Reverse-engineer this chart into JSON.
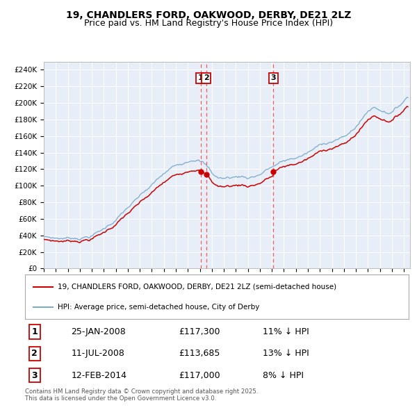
{
  "title": "19, CHANDLERS FORD, OAKWOOD, DERBY, DE21 2LZ",
  "subtitle": "Price paid vs. HM Land Registry's House Price Index (HPI)",
  "ylim": [
    0,
    250000
  ],
  "yticks": [
    0,
    20000,
    40000,
    60000,
    80000,
    100000,
    120000,
    140000,
    160000,
    180000,
    200000,
    220000,
    240000
  ],
  "plot_bg": "#e8eef8",
  "hpi_color": "#7aaad0",
  "price_color": "#cc0000",
  "vline_color": "#ff5555",
  "sale_dates_float": [
    2008.069,
    2008.527,
    2014.118
  ],
  "sale_prices": [
    117300,
    113685,
    117000
  ],
  "sale_labels": [
    "1",
    "2",
    "3"
  ],
  "hpi_knots_x": [
    1995.0,
    1996.0,
    1997.0,
    1998.0,
    1999.0,
    2000.0,
    2001.0,
    2002.0,
    2003.0,
    2004.0,
    2004.75,
    2005.5,
    2006.5,
    2007.25,
    2007.75,
    2008.25,
    2008.75,
    2009.0,
    2009.5,
    2010.0,
    2010.5,
    2011.0,
    2011.5,
    2012.0,
    2012.5,
    2013.0,
    2013.5,
    2014.0,
    2014.5,
    2015.0,
    2015.5,
    2016.0,
    2016.5,
    2017.0,
    2017.5,
    2018.0,
    2018.5,
    2019.0,
    2019.5,
    2020.0,
    2020.5,
    2021.0,
    2021.5,
    2022.0,
    2022.5,
    2023.0,
    2023.5,
    2024.0,
    2024.5,
    2025.25
  ],
  "hpi_knots_y": [
    38000,
    36500,
    37000,
    38500,
    42000,
    50000,
    62000,
    76000,
    88000,
    100000,
    110000,
    118000,
    126000,
    133000,
    136000,
    132000,
    124000,
    118000,
    113000,
    112000,
    113000,
    114000,
    115000,
    114000,
    116000,
    119000,
    124000,
    128000,
    131000,
    134000,
    136000,
    138000,
    141000,
    144000,
    148000,
    152000,
    156000,
    159000,
    162000,
    163000,
    168000,
    176000,
    185000,
    195000,
    200000,
    198000,
    196000,
    197000,
    202000,
    215000
  ],
  "table_data": [
    [
      "1",
      "25-JAN-2008",
      "£117,300",
      "11% ↓ HPI"
    ],
    [
      "2",
      "11-JUL-2008",
      "£113,685",
      "13% ↓ HPI"
    ],
    [
      "3",
      "12-FEB-2014",
      "£117,000",
      "8% ↓ HPI"
    ]
  ],
  "legend_entries": [
    "19, CHANDLERS FORD, OAKWOOD, DERBY, DE21 2LZ (semi-detached house)",
    "HPI: Average price, semi-detached house, City of Derby"
  ],
  "footer": "Contains HM Land Registry data © Crown copyright and database right 2025.\nThis data is licensed under the Open Government Licence v3.0.",
  "title_fontsize": 10,
  "subtitle_fontsize": 9
}
